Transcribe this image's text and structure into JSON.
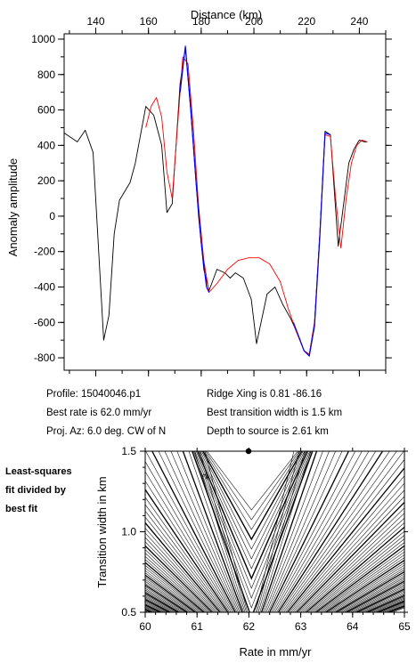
{
  "top_chart": {
    "title": "Distance (km)",
    "ylabel": "Anomaly amplitude",
    "x_ticks": [
      140,
      160,
      180,
      200,
      220,
      240
    ],
    "y_ticks": [
      -800,
      -600,
      -400,
      -200,
      0,
      200,
      400,
      600,
      800,
      1000
    ]
  },
  "info": {
    "profile": "Profile: 15040046.p1",
    "best_rate": "Best rate is 62.0 mm/yr",
    "proj_az": "Proj. Az: 6.0 deg. CW of N",
    "ridge_xing": "Ridge Xing is 0.81 -86.16",
    "best_width": "Best transition width is 1.5 km",
    "depth": "Depth to source is   2.61 km"
  },
  "note": {
    "line1": "Least-squares",
    "line2": "fit divided by",
    "line3": "best fit"
  },
  "bottom_chart": {
    "xlabel": "Rate in mm/yr",
    "ylabel": "Transition width in km",
    "x_ticks": [
      "60",
      "61",
      "62",
      "63",
      "64",
      "65"
    ],
    "y_ticks": [
      "0.5",
      "1.0",
      "1.5"
    ],
    "contour_label": "2"
  },
  "chart_data": [
    {
      "type": "line",
      "xlabel": "Distance (km)",
      "ylabel": "Anomaly amplitude",
      "xlim": [
        128,
        250
      ],
      "ylim": [
        -870,
        1030
      ],
      "series": [
        {
          "color": "#000000",
          "points": [
            [
              128,
              470
            ],
            [
              133,
              420
            ],
            [
              136,
              485
            ],
            [
              139,
              360
            ],
            [
              143,
              -700
            ],
            [
              145,
              -560
            ],
            [
              147,
              -100
            ],
            [
              149,
              90
            ],
            [
              153,
              190
            ],
            [
              155,
              300
            ],
            [
              159,
              620
            ],
            [
              162,
              570
            ],
            [
              165,
              400
            ],
            [
              167,
              20
            ],
            [
              169,
              70
            ],
            [
              172,
              750
            ],
            [
              174,
              950
            ],
            [
              176,
              600
            ],
            [
              179,
              0
            ],
            [
              181,
              -300
            ],
            [
              183,
              -420
            ],
            [
              186,
              -300
            ],
            [
              189,
              -320
            ],
            [
              191,
              -350
            ],
            [
              193,
              -320
            ],
            [
              196,
              -350
            ],
            [
              199,
              -470
            ],
            [
              201,
              -720
            ],
            [
              205,
              -440
            ],
            [
              208,
              -400
            ],
            [
              211,
              -500
            ],
            [
              214,
              -580
            ],
            [
              217,
              -680
            ],
            [
              219,
              -760
            ],
            [
              221,
              -780
            ],
            [
              223,
              -600
            ],
            [
              225,
              -100
            ],
            [
              227,
              480
            ],
            [
              229,
              460
            ],
            [
              232,
              -170
            ],
            [
              236,
              300
            ],
            [
              238,
              380
            ],
            [
              240,
              430
            ],
            [
              242,
              420
            ],
            [
              243,
              420
            ]
          ]
        },
        {
          "color": "#ff0000",
          "points": [
            [
              159,
              500
            ],
            [
              161,
              620
            ],
            [
              163,
              670
            ],
            [
              165,
              560
            ],
            [
              167,
              250
            ],
            [
              169,
              100
            ],
            [
              171,
              500
            ],
            [
              173,
              900
            ],
            [
              175,
              860
            ],
            [
              177,
              500
            ],
            [
              179,
              60
            ],
            [
              181,
              -250
            ],
            [
              183,
              -430
            ],
            [
              186,
              -380
            ],
            [
              190,
              -300
            ],
            [
              194,
              -250
            ],
            [
              198,
              -235
            ],
            [
              202,
              -235
            ],
            [
              206,
              -270
            ],
            [
              210,
              -370
            ],
            [
              213,
              -520
            ],
            [
              216,
              -650
            ],
            [
              219,
              -760
            ],
            [
              221,
              -780
            ],
            [
              223,
              -600
            ],
            [
              225,
              -100
            ],
            [
              227,
              460
            ],
            [
              229,
              450
            ],
            [
              231,
              100
            ],
            [
              233,
              -180
            ],
            [
              235,
              100
            ],
            [
              237,
              300
            ],
            [
              239,
              400
            ],
            [
              241,
              430
            ],
            [
              243,
              420
            ]
          ]
        },
        {
          "color": "#0000ff",
          "points": [
            [
              172,
              700
            ],
            [
              174,
              960
            ],
            [
              176,
              620
            ],
            [
              178,
              200
            ],
            [
              180,
              -150
            ],
            [
              182,
              -400
            ],
            [
              183,
              -430
            ]
          ]
        },
        {
          "color": "#0000ff",
          "points": [
            [
              215,
              -600
            ],
            [
              217,
              -680
            ],
            [
              219,
              -760
            ],
            [
              221,
              -790
            ],
            [
              223,
              -620
            ],
            [
              225,
              -120
            ],
            [
              227,
              470
            ],
            [
              229,
              460
            ]
          ]
        }
      ]
    },
    {
      "type": "heatmap",
      "xlabel": "Rate in mm/yr",
      "ylabel": "Transition width in km",
      "xlim": [
        60,
        65
      ],
      "ylim": [
        0.5,
        1.5
      ],
      "best_fit_point": {
        "x": 62.0,
        "y": 1.5
      },
      "contour_label": "2",
      "contour_levels": 72
    }
  ]
}
